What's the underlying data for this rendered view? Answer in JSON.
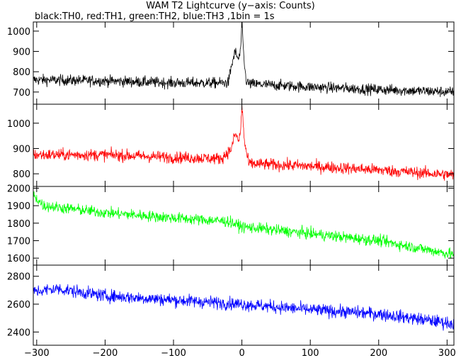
{
  "title": "WAM T2 Lightcurve (y−axis: Counts)",
  "subtitle": "black:TH0, red:TH1, green:TH2, blue:TH3 ,1bin = 1s",
  "chart_data": {
    "type": "line",
    "xlim": [
      -305,
      310
    ],
    "xticks": [
      -300,
      -200,
      -100,
      0,
      100,
      200,
      300
    ],
    "xlabel": "",
    "ylabel": "",
    "grid": false,
    "legend": "none",
    "panels": [
      {
        "color": "#000000",
        "ylim": [
          640,
          1045
        ],
        "yticks": [
          700,
          800,
          900,
          1000
        ],
        "baseline_start": 760,
        "baseline_end": 700,
        "noise": 32,
        "peak": {
          "x": 0,
          "y": 1040
        },
        "profile": [
          [
            -300,
            760
          ],
          [
            -200,
            755
          ],
          [
            -100,
            745
          ],
          [
            -20,
            745
          ],
          [
            -15,
            830
          ],
          [
            -10,
            900
          ],
          [
            -5,
            860
          ],
          [
            -2,
            900
          ],
          [
            0,
            1040
          ],
          [
            3,
            860
          ],
          [
            6,
            760
          ],
          [
            10,
            740
          ],
          [
            100,
            725
          ],
          [
            200,
            712
          ],
          [
            310,
            700
          ]
        ]
      },
      {
        "color": "#ff0000",
        "ylim": [
          750,
          1075
        ],
        "yticks": [
          800,
          900,
          1000
        ],
        "baseline_start": 875,
        "baseline_end": 795,
        "noise": 28,
        "peak": {
          "x": 0,
          "y": 1070
        },
        "profile": [
          [
            -300,
            875
          ],
          [
            -200,
            875
          ],
          [
            -100,
            865
          ],
          [
            -30,
            860
          ],
          [
            -15,
            900
          ],
          [
            -10,
            960
          ],
          [
            -5,
            930
          ],
          [
            -2,
            960
          ],
          [
            0,
            1070
          ],
          [
            4,
            920
          ],
          [
            10,
            840
          ],
          [
            100,
            830
          ],
          [
            200,
            815
          ],
          [
            310,
            795
          ]
        ]
      },
      {
        "color": "#00ff00",
        "ylim": [
          1560,
          2010
        ],
        "yticks": [
          1600,
          1700,
          1800,
          1900,
          2000
        ],
        "baseline_start": 1950,
        "baseline_end": 1620,
        "noise": 38,
        "profile": [
          [
            -305,
            1960
          ],
          [
            -290,
            1900
          ],
          [
            -200,
            1860
          ],
          [
            -100,
            1830
          ],
          [
            -20,
            1810
          ],
          [
            0,
            1780
          ],
          [
            100,
            1740
          ],
          [
            200,
            1700
          ],
          [
            310,
            1620
          ]
        ]
      },
      {
        "color": "#0000ff",
        "ylim": [
          2305,
          2880
        ],
        "yticks": [
          2400,
          2600,
          2800
        ],
        "baseline_start": 2700,
        "baseline_end": 2460,
        "noise": 55,
        "profile": [
          [
            -305,
            2690
          ],
          [
            -270,
            2710
          ],
          [
            -200,
            2660
          ],
          [
            -100,
            2630
          ],
          [
            0,
            2600
          ],
          [
            100,
            2560
          ],
          [
            200,
            2530
          ],
          [
            310,
            2460
          ]
        ]
      }
    ]
  }
}
